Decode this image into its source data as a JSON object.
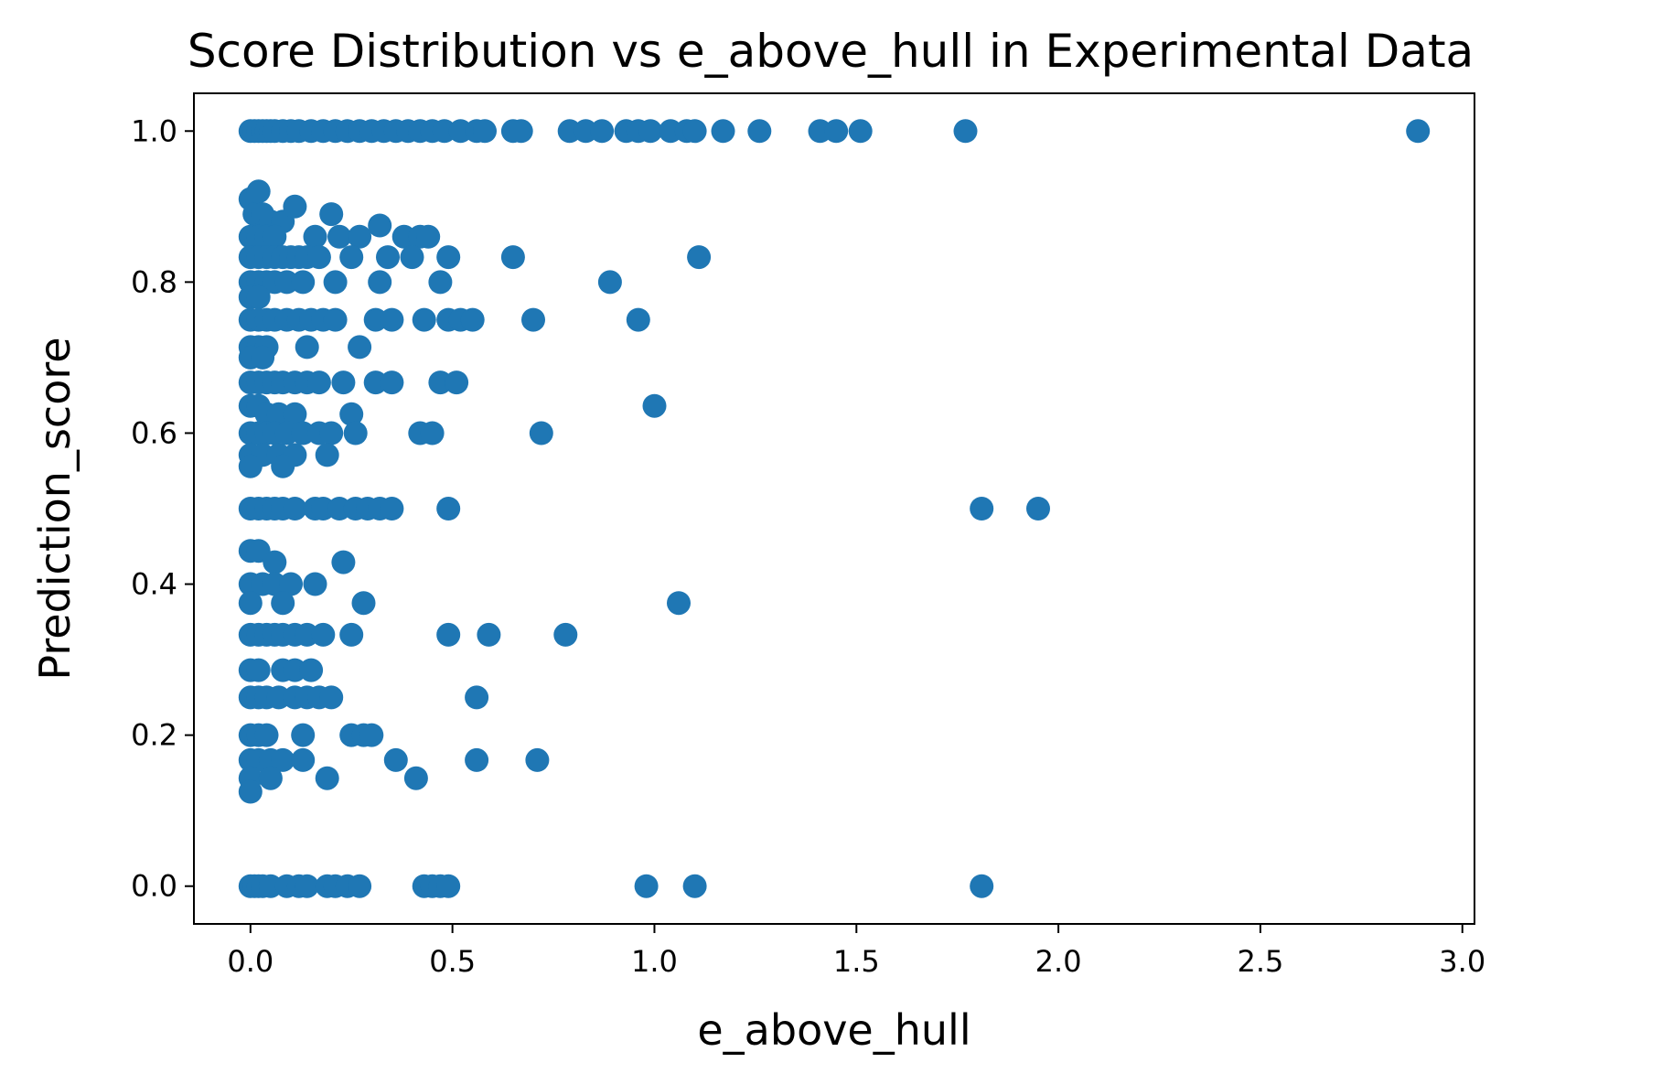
{
  "chart_data": {
    "type": "scatter",
    "title": "Score Distribution vs e_above_hull in Experimental Data",
    "xlabel": "e_above_hull",
    "ylabel": "Prediction_score",
    "xlim": [
      -0.14,
      3.03
    ],
    "ylim": [
      -0.05,
      1.05
    ],
    "xticks": [
      0.0,
      0.5,
      1.0,
      1.5,
      2.0,
      2.5,
      3.0
    ],
    "xtick_labels": [
      "0.0",
      "0.5",
      "1.0",
      "1.5",
      "2.0",
      "2.5",
      "3.0"
    ],
    "yticks": [
      0.0,
      0.2,
      0.4,
      0.6,
      0.8,
      1.0
    ],
    "ytick_labels": [
      "0.0",
      "0.2",
      "0.4",
      "0.6",
      "0.8",
      "1.0"
    ],
    "grid": false,
    "marker_color": "#1f77b4",
    "points": [
      [
        0.0,
        1.0
      ],
      [
        0.01,
        1.0
      ],
      [
        0.02,
        1.0
      ],
      [
        0.03,
        1.0
      ],
      [
        0.04,
        1.0
      ],
      [
        0.05,
        1.0
      ],
      [
        0.06,
        1.0
      ],
      [
        0.08,
        1.0
      ],
      [
        0.1,
        1.0
      ],
      [
        0.12,
        1.0
      ],
      [
        0.15,
        1.0
      ],
      [
        0.18,
        1.0
      ],
      [
        0.21,
        1.0
      ],
      [
        0.24,
        1.0
      ],
      [
        0.27,
        1.0
      ],
      [
        0.3,
        1.0
      ],
      [
        0.33,
        1.0
      ],
      [
        0.36,
        1.0
      ],
      [
        0.39,
        1.0
      ],
      [
        0.42,
        1.0
      ],
      [
        0.45,
        1.0
      ],
      [
        0.48,
        1.0
      ],
      [
        0.52,
        1.0
      ],
      [
        0.56,
        1.0
      ],
      [
        0.58,
        1.0
      ],
      [
        0.65,
        1.0
      ],
      [
        0.67,
        1.0
      ],
      [
        0.79,
        1.0
      ],
      [
        0.83,
        1.0
      ],
      [
        0.87,
        1.0
      ],
      [
        0.93,
        1.0
      ],
      [
        0.96,
        1.0
      ],
      [
        0.99,
        1.0
      ],
      [
        1.04,
        1.0
      ],
      [
        1.08,
        1.0
      ],
      [
        1.1,
        1.0
      ],
      [
        1.17,
        1.0
      ],
      [
        1.26,
        1.0
      ],
      [
        1.41,
        1.0
      ],
      [
        1.45,
        1.0
      ],
      [
        1.51,
        1.0
      ],
      [
        1.77,
        1.0
      ],
      [
        2.89,
        1.0
      ],
      [
        0.0,
        0.91
      ],
      [
        0.01,
        0.89
      ],
      [
        0.02,
        0.92
      ],
      [
        0.03,
        0.89
      ],
      [
        0.05,
        0.88
      ],
      [
        0.08,
        0.88
      ],
      [
        0.11,
        0.9
      ],
      [
        0.2,
        0.89
      ],
      [
        0.0,
        0.86
      ],
      [
        0.02,
        0.86
      ],
      [
        0.04,
        0.86
      ],
      [
        0.06,
        0.86
      ],
      [
        0.16,
        0.86
      ],
      [
        0.22,
        0.86
      ],
      [
        0.27,
        0.86
      ],
      [
        0.32,
        0.875
      ],
      [
        0.38,
        0.86
      ],
      [
        0.42,
        0.86
      ],
      [
        0.44,
        0.86
      ],
      [
        0.0,
        0.833
      ],
      [
        0.02,
        0.833
      ],
      [
        0.04,
        0.833
      ],
      [
        0.06,
        0.833
      ],
      [
        0.08,
        0.833
      ],
      [
        0.1,
        0.833
      ],
      [
        0.12,
        0.833
      ],
      [
        0.14,
        0.833
      ],
      [
        0.17,
        0.833
      ],
      [
        0.25,
        0.833
      ],
      [
        0.34,
        0.833
      ],
      [
        0.4,
        0.833
      ],
      [
        0.49,
        0.833
      ],
      [
        0.65,
        0.833
      ],
      [
        1.11,
        0.833
      ],
      [
        0.0,
        0.8
      ],
      [
        0.02,
        0.8
      ],
      [
        0.04,
        0.8
      ],
      [
        0.06,
        0.8
      ],
      [
        0.09,
        0.8
      ],
      [
        0.13,
        0.8
      ],
      [
        0.21,
        0.8
      ],
      [
        0.32,
        0.8
      ],
      [
        0.47,
        0.8
      ],
      [
        0.89,
        0.8
      ],
      [
        0.0,
        0.78
      ],
      [
        0.02,
        0.78
      ],
      [
        0.0,
        0.75
      ],
      [
        0.02,
        0.75
      ],
      [
        0.04,
        0.75
      ],
      [
        0.06,
        0.75
      ],
      [
        0.09,
        0.75
      ],
      [
        0.12,
        0.75
      ],
      [
        0.15,
        0.75
      ],
      [
        0.18,
        0.75
      ],
      [
        0.21,
        0.75
      ],
      [
        0.31,
        0.75
      ],
      [
        0.35,
        0.75
      ],
      [
        0.43,
        0.75
      ],
      [
        0.49,
        0.75
      ],
      [
        0.52,
        0.75
      ],
      [
        0.55,
        0.75
      ],
      [
        0.7,
        0.75
      ],
      [
        0.96,
        0.75
      ],
      [
        0.0,
        0.714
      ],
      [
        0.02,
        0.714
      ],
      [
        0.04,
        0.714
      ],
      [
        0.14,
        0.714
      ],
      [
        0.27,
        0.714
      ],
      [
        0.0,
        0.7
      ],
      [
        0.03,
        0.7
      ],
      [
        0.0,
        0.667
      ],
      [
        0.02,
        0.667
      ],
      [
        0.04,
        0.667
      ],
      [
        0.06,
        0.667
      ],
      [
        0.08,
        0.667
      ],
      [
        0.11,
        0.667
      ],
      [
        0.14,
        0.667
      ],
      [
        0.17,
        0.667
      ],
      [
        0.23,
        0.667
      ],
      [
        0.31,
        0.667
      ],
      [
        0.35,
        0.667
      ],
      [
        0.47,
        0.667
      ],
      [
        0.51,
        0.667
      ],
      [
        0.0,
        0.636
      ],
      [
        0.02,
        0.636
      ],
      [
        0.04,
        0.625
      ],
      [
        0.07,
        0.625
      ],
      [
        0.11,
        0.625
      ],
      [
        0.25,
        0.625
      ],
      [
        1.0,
        0.636
      ],
      [
        0.0,
        0.6
      ],
      [
        0.02,
        0.6
      ],
      [
        0.04,
        0.6
      ],
      [
        0.06,
        0.6
      ],
      [
        0.09,
        0.6
      ],
      [
        0.13,
        0.6
      ],
      [
        0.17,
        0.6
      ],
      [
        0.2,
        0.6
      ],
      [
        0.26,
        0.6
      ],
      [
        0.42,
        0.6
      ],
      [
        0.45,
        0.6
      ],
      [
        0.72,
        0.6
      ],
      [
        0.0,
        0.571
      ],
      [
        0.03,
        0.571
      ],
      [
        0.07,
        0.571
      ],
      [
        0.11,
        0.571
      ],
      [
        0.19,
        0.571
      ],
      [
        0.0,
        0.556
      ],
      [
        0.08,
        0.556
      ],
      [
        0.0,
        0.5
      ],
      [
        0.02,
        0.5
      ],
      [
        0.04,
        0.5
      ],
      [
        0.06,
        0.5
      ],
      [
        0.08,
        0.5
      ],
      [
        0.11,
        0.5
      ],
      [
        0.16,
        0.5
      ],
      [
        0.18,
        0.5
      ],
      [
        0.22,
        0.5
      ],
      [
        0.26,
        0.5
      ],
      [
        0.29,
        0.5
      ],
      [
        0.32,
        0.5
      ],
      [
        0.35,
        0.5
      ],
      [
        0.49,
        0.5
      ],
      [
        1.81,
        0.5
      ],
      [
        1.95,
        0.5
      ],
      [
        0.0,
        0.444
      ],
      [
        0.02,
        0.444
      ],
      [
        0.06,
        0.429
      ],
      [
        0.23,
        0.429
      ],
      [
        0.0,
        0.4
      ],
      [
        0.03,
        0.4
      ],
      [
        0.06,
        0.4
      ],
      [
        0.1,
        0.4
      ],
      [
        0.16,
        0.4
      ],
      [
        0.0,
        0.375
      ],
      [
        0.08,
        0.375
      ],
      [
        0.28,
        0.375
      ],
      [
        1.06,
        0.375
      ],
      [
        0.0,
        0.333
      ],
      [
        0.02,
        0.333
      ],
      [
        0.04,
        0.333
      ],
      [
        0.06,
        0.333
      ],
      [
        0.08,
        0.333
      ],
      [
        0.11,
        0.333
      ],
      [
        0.14,
        0.333
      ],
      [
        0.18,
        0.333
      ],
      [
        0.25,
        0.333
      ],
      [
        0.49,
        0.333
      ],
      [
        0.59,
        0.333
      ],
      [
        0.78,
        0.333
      ],
      [
        0.0,
        0.286
      ],
      [
        0.02,
        0.286
      ],
      [
        0.08,
        0.286
      ],
      [
        0.11,
        0.286
      ],
      [
        0.15,
        0.286
      ],
      [
        0.0,
        0.25
      ],
      [
        0.02,
        0.25
      ],
      [
        0.04,
        0.25
      ],
      [
        0.07,
        0.25
      ],
      [
        0.11,
        0.25
      ],
      [
        0.14,
        0.25
      ],
      [
        0.17,
        0.25
      ],
      [
        0.2,
        0.25
      ],
      [
        0.56,
        0.25
      ],
      [
        0.0,
        0.2
      ],
      [
        0.02,
        0.2
      ],
      [
        0.04,
        0.2
      ],
      [
        0.13,
        0.2
      ],
      [
        0.25,
        0.2
      ],
      [
        0.28,
        0.2
      ],
      [
        0.3,
        0.2
      ],
      [
        0.0,
        0.167
      ],
      [
        0.02,
        0.167
      ],
      [
        0.05,
        0.167
      ],
      [
        0.08,
        0.167
      ],
      [
        0.13,
        0.167
      ],
      [
        0.36,
        0.167
      ],
      [
        0.56,
        0.167
      ],
      [
        0.71,
        0.167
      ],
      [
        0.0,
        0.143
      ],
      [
        0.05,
        0.143
      ],
      [
        0.19,
        0.143
      ],
      [
        0.41,
        0.143
      ],
      [
        0.0,
        0.125
      ],
      [
        0.0,
        0.0
      ],
      [
        0.01,
        0.0
      ],
      [
        0.02,
        0.0
      ],
      [
        0.03,
        0.0
      ],
      [
        0.05,
        0.0
      ],
      [
        0.09,
        0.0
      ],
      [
        0.12,
        0.0
      ],
      [
        0.14,
        0.0
      ],
      [
        0.19,
        0.0
      ],
      [
        0.21,
        0.0
      ],
      [
        0.24,
        0.0
      ],
      [
        0.27,
        0.0
      ],
      [
        0.43,
        0.0
      ],
      [
        0.45,
        0.0
      ],
      [
        0.47,
        0.0
      ],
      [
        0.49,
        0.0
      ],
      [
        0.98,
        0.0
      ],
      [
        1.1,
        0.0
      ],
      [
        1.81,
        0.0
      ]
    ]
  }
}
